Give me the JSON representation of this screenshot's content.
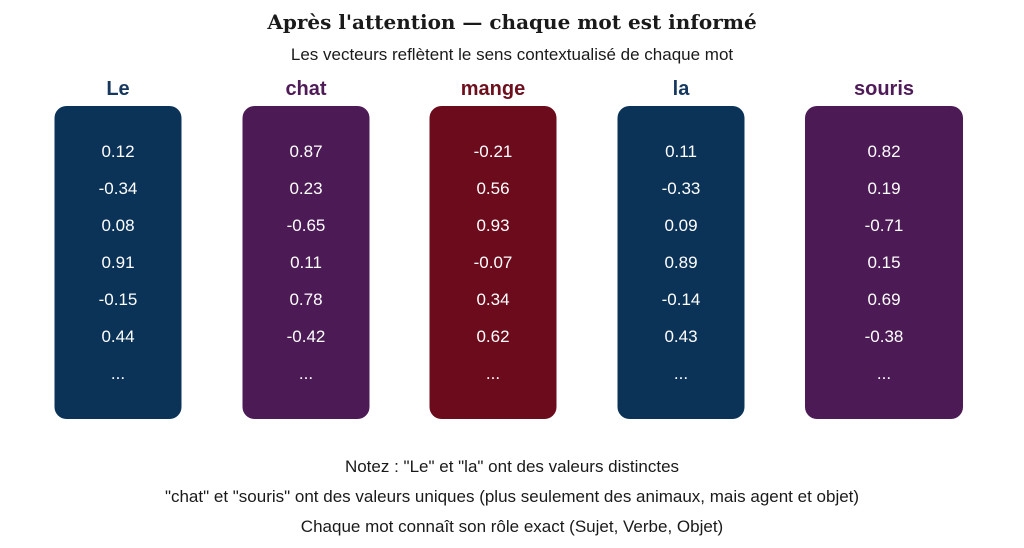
{
  "header": {
    "title": "Après l'attention — chaque mot est informé",
    "subtitle": "Les vecteurs reflètent le sens contextualisé de chaque mot"
  },
  "words": [
    {
      "label": "Le",
      "label_color": "#16385f",
      "box_color": "#0b3358",
      "values": [
        "0.12",
        "-0.34",
        "0.08",
        "0.91",
        "-0.15",
        "0.44",
        "..."
      ]
    },
    {
      "label": "chat",
      "label_color": "#4e1a57",
      "box_color": "#4c1a55",
      "values": [
        "0.87",
        "0.23",
        "-0.65",
        "0.11",
        "0.78",
        "-0.42",
        "..."
      ]
    },
    {
      "label": "mange",
      "label_color": "#6e0f1e",
      "box_color": "#6b0b1b",
      "values": [
        "-0.21",
        "0.56",
        "0.93",
        "-0.07",
        "0.34",
        "0.62",
        "..."
      ]
    },
    {
      "label": "la",
      "label_color": "#16385f",
      "box_color": "#0b3358",
      "values": [
        "0.11",
        "-0.33",
        "0.09",
        "0.89",
        "-0.14",
        "0.43",
        "..."
      ]
    },
    {
      "label": "souris",
      "label_color": "#4e1a57",
      "box_color": "#4c1a55",
      "values": [
        "0.82",
        "0.19",
        "-0.71",
        "0.15",
        "0.69",
        "-0.38",
        "..."
      ]
    }
  ],
  "notes": [
    "Notez : \"Le\" et \"la\" ont des valeurs distinctes",
    "\"chat\" et \"souris\" ont des valeurs uniques (plus seulement des animaux, mais agent et objet)",
    "Chaque mot connaît son rôle exact (Sujet, Verbe, Objet)"
  ]
}
